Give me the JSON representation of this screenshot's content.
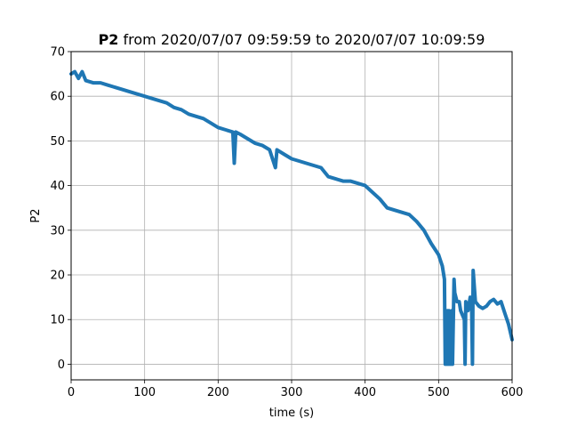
{
  "chart_data": {
    "type": "line",
    "title_bold": "P2",
    "title_rest": " from 2020/07/07 09:59:59 to 2020/07/07 10:09:59",
    "xlabel": "time (s)",
    "ylabel": "P2",
    "xlim": [
      0,
      600
    ],
    "ylim": [
      -3.5,
      70
    ],
    "xticks": [
      0,
      100,
      200,
      300,
      400,
      500,
      600
    ],
    "yticks": [
      0,
      10,
      20,
      30,
      40,
      50,
      60,
      70
    ],
    "grid": true,
    "color": "#1f77b4",
    "series": [
      {
        "x": [
          0,
          5,
          10,
          15,
          20,
          30,
          40,
          50,
          60,
          70,
          80,
          90,
          100,
          110,
          120,
          130,
          140,
          150,
          160,
          170,
          180,
          190,
          200,
          210,
          220,
          222,
          224,
          230,
          240,
          250,
          260,
          270,
          278,
          280,
          290,
          300,
          310,
          320,
          330,
          340,
          350,
          360,
          370,
          380,
          390,
          400,
          410,
          420,
          430,
          440,
          450,
          460,
          470,
          480,
          490,
          500,
          505,
          508,
          509,
          510,
          511,
          512,
          513,
          514,
          515,
          516,
          517,
          518,
          519,
          520,
          521,
          522,
          525,
          528,
          530,
          535,
          536,
          537,
          540,
          543,
          545,
          546,
          547,
          550,
          555,
          560,
          565,
          570,
          575,
          580,
          585,
          590,
          595,
          600
        ],
        "y": [
          65,
          65.5,
          64,
          65.5,
          63.5,
          63,
          63,
          62.5,
          62,
          61.5,
          61,
          60.5,
          60,
          59.5,
          59,
          58.5,
          57.5,
          57,
          56,
          55.5,
          55,
          54,
          53,
          52.5,
          52,
          45,
          52,
          51.5,
          50.5,
          49.5,
          49,
          48,
          44,
          48,
          47,
          46,
          45.5,
          45,
          44.5,
          44,
          42,
          41.5,
          41,
          41,
          40.5,
          40,
          38.5,
          37,
          35,
          34.5,
          34,
          33.5,
          32,
          30,
          27,
          24.5,
          22,
          19,
          0,
          11,
          0,
          12,
          0,
          12,
          0,
          11,
          0,
          12,
          0,
          10,
          19,
          16,
          14,
          14,
          12,
          10,
          0,
          14,
          12,
          15,
          13,
          0,
          21,
          14,
          13,
          12.5,
          13,
          14,
          14.5,
          13.5,
          14,
          11.5,
          9,
          5.5
        ]
      }
    ]
  }
}
